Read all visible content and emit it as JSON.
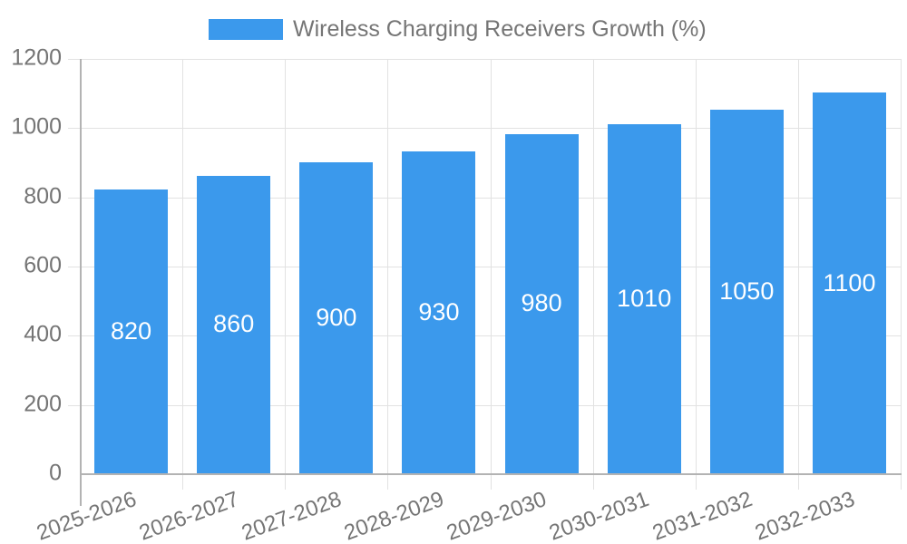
{
  "legend": {
    "label": "Wireless Charging Receivers Growth (%)"
  },
  "chart_data": {
    "type": "bar",
    "title": "Wireless Charging Receivers Growth (%)",
    "categories": [
      "2025-2026",
      "2026-2027",
      "2027-2028",
      "2028-2029",
      "2029-2030",
      "2030-2031",
      "2031-2032",
      "2032-2033"
    ],
    "values": [
      820,
      860,
      900,
      930,
      980,
      1010,
      1050,
      1100
    ],
    "bar_labels": [
      "820",
      "860",
      "900",
      "930",
      "980",
      "1010",
      "1050",
      "1100"
    ],
    "xlabel": "",
    "ylabel": "",
    "ylim": [
      0,
      1200
    ],
    "yticks": [
      0,
      200,
      400,
      600,
      800,
      1000,
      1200
    ],
    "grid": true,
    "legend_position": "top",
    "colors": {
      "bar": "#3b99ec",
      "value_label": "#ffffff",
      "axis_text": "#757575",
      "axis_line": "#b3b3b3",
      "gridline": "#e2e2e2",
      "background": "#ffffff"
    }
  }
}
